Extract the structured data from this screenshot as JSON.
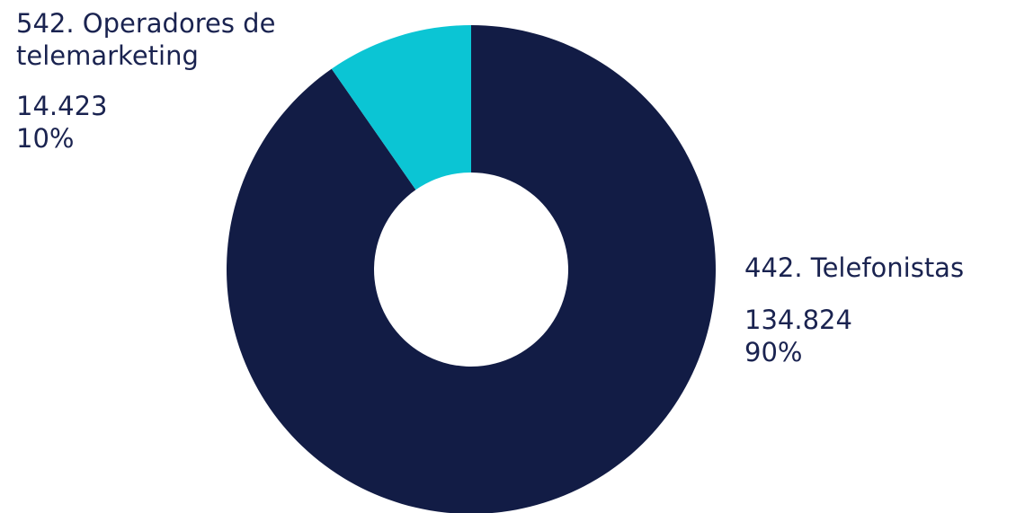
{
  "chart_data": {
    "type": "donut",
    "categories": [
      "442. Telefonistas",
      "542. Operadores de telemarketing"
    ],
    "values": [
      134824,
      14423
    ],
    "value_labels": [
      "134.824",
      "14.423"
    ],
    "percent_labels": [
      "90%",
      "10%"
    ],
    "colors": [
      "#121c45",
      "#0bc5d4"
    ]
  }
}
